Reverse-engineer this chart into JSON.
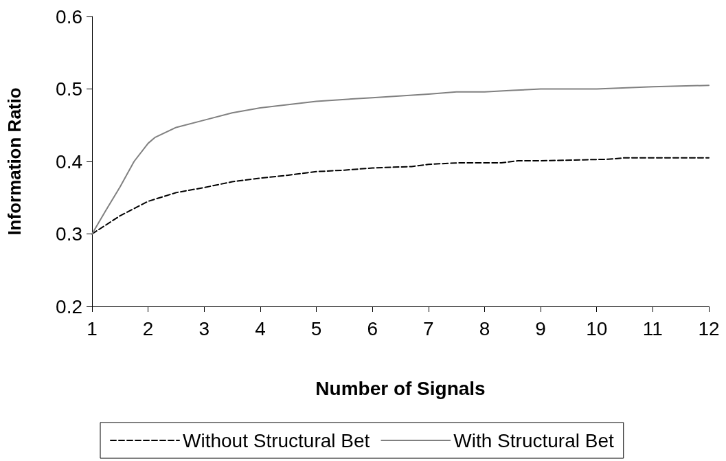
{
  "chart_data": {
    "type": "line",
    "xlabel": "Number of Signals",
    "ylabel": "Information Ratio",
    "xlim": [
      1,
      12
    ],
    "xticks": [
      1,
      2,
      3,
      4,
      5,
      6,
      7,
      8,
      9,
      10,
      11,
      12
    ],
    "ylim": [
      0.2,
      0.6
    ],
    "yticks": [
      0.2,
      0.3,
      0.4,
      0.5,
      0.6
    ],
    "grid": false,
    "legend": "bottom",
    "marker": "none",
    "series": [
      {
        "name": "Without Structural Bet",
        "color": "#000000",
        "line_style": "dashed",
        "x": [
          1,
          1.5,
          2,
          2.5,
          3,
          3.5,
          4,
          4.5,
          5,
          5.5,
          6,
          6.7,
          7,
          7.5,
          8.3,
          8.6,
          9,
          10.2,
          10.5,
          12
        ],
        "values": [
          0.3,
          0.325,
          0.345,
          0.357,
          0.364,
          0.372,
          0.377,
          0.381,
          0.386,
          0.388,
          0.391,
          0.393,
          0.396,
          0.398,
          0.398,
          0.401,
          0.401,
          0.403,
          0.405,
          0.405
        ]
      },
      {
        "name": "With Structural Bet",
        "color": "#808080",
        "line_style": "solid",
        "x": [
          1,
          1.25,
          1.5,
          1.75,
          2,
          2.12,
          2.5,
          3,
          3.5,
          4,
          5,
          6,
          7,
          7.5,
          8,
          8.5,
          9,
          10,
          11,
          12
        ],
        "values": [
          0.3,
          0.333,
          0.365,
          0.4,
          0.425,
          0.433,
          0.447,
          0.457,
          0.467,
          0.474,
          0.483,
          0.488,
          0.493,
          0.496,
          0.496,
          0.498,
          0.5,
          0.5,
          0.503,
          0.505
        ]
      }
    ]
  }
}
